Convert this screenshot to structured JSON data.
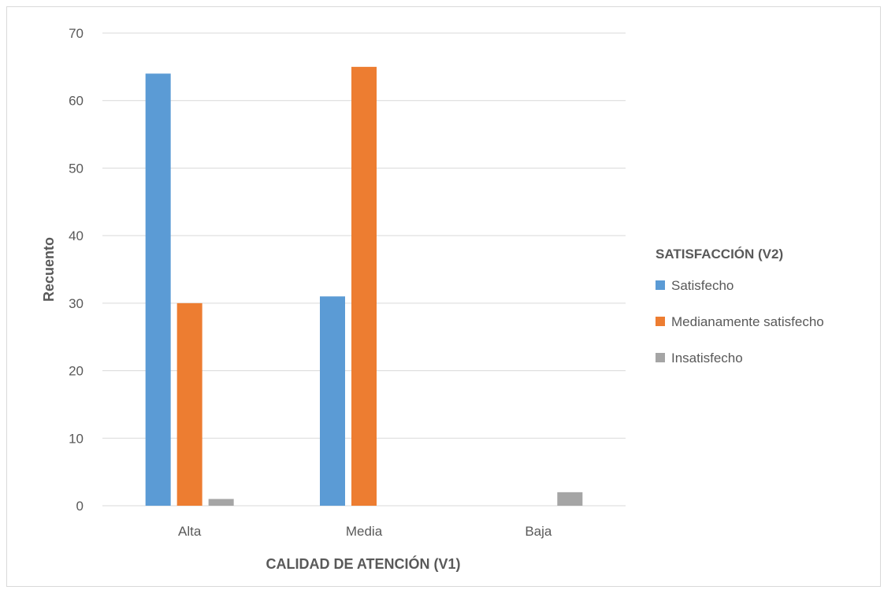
{
  "chart_data": {
    "type": "bar",
    "categories": [
      "Alta",
      "Media",
      "Baja"
    ],
    "series": [
      {
        "name": "Satisfecho",
        "values": [
          64,
          31,
          0
        ],
        "color": "#5B9BD5"
      },
      {
        "name": "Medianamente satisfecho",
        "values": [
          30,
          65,
          0
        ],
        "color": "#ED7D31"
      },
      {
        "name": "Insatisfecho",
        "values": [
          1,
          0,
          2
        ],
        "color": "#A5A5A5"
      }
    ],
    "title": "",
    "xlabel": "CALIDAD DE ATENCIÓN (V1)",
    "ylabel": "Recuento",
    "ylim": [
      0,
      70
    ],
    "yticks": [
      0,
      10,
      20,
      30,
      40,
      50,
      60,
      70
    ],
    "grid": true,
    "legend": {
      "title": "SATISFACCIÓN (V2)",
      "placement": "right"
    }
  }
}
